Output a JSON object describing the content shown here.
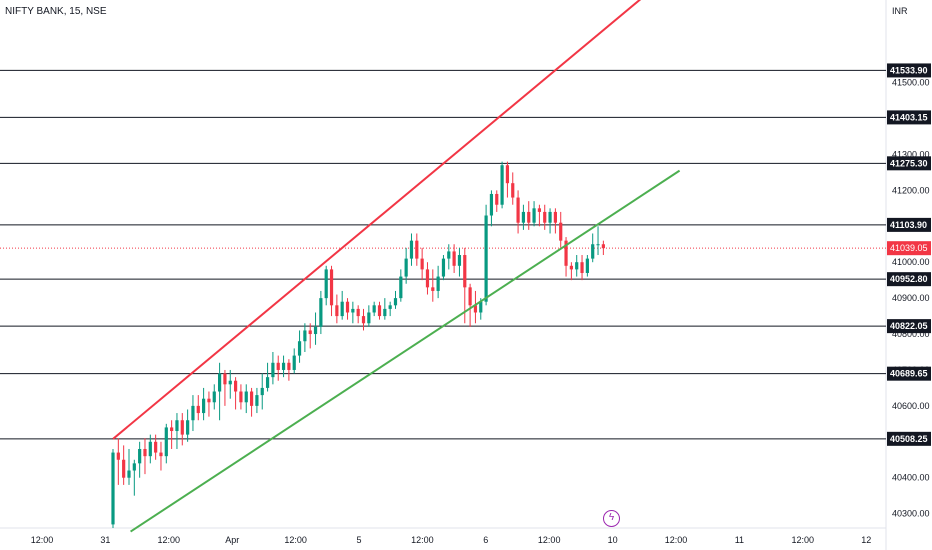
{
  "title": "NIFTY BANK, 15, NSE",
  "currency": "INR",
  "chart_data": {
    "type": "candlestick",
    "ylim": [
      40260,
      41730
    ],
    "y_ticks": [
      40300,
      40400,
      40500,
      40600,
      40700,
      40800,
      40900,
      41000,
      41100,
      41200,
      41300,
      41400,
      41500
    ],
    "y_tick_labels": [
      "40300.00",
      "40400.00",
      "40500.00",
      "40600.00",
      "40700.00",
      "40800.00",
      "40900.00",
      "41000.00",
      "41100.00",
      "41200.00",
      "41300.00",
      "41400.00",
      "41500.00"
    ],
    "x_tick_labels": [
      "12:00",
      "31",
      "12:00",
      "Apr",
      "12:00",
      "5",
      "12:00",
      "6",
      "12:00",
      "10",
      "12:00",
      "11",
      "12:00",
      "12"
    ],
    "levels": [
      41533.9,
      41403.15,
      41275.3,
      41103.9,
      40952.8,
      40822.05,
      40689.65,
      40508.25
    ],
    "level_labels": [
      "41533.90",
      "41403.15",
      "41275.30",
      "41103.90",
      "40952.80",
      "40822.05",
      "40689.65",
      "40508.25"
    ],
    "current_price": 41039.05,
    "current_price_label": "41039.05",
    "up_color": "#089981",
    "down_color": "#f23645",
    "upper_channel": {
      "color": "#f23645",
      "from": [
        0,
        40508
      ],
      "to": [
        99.6,
        41740
      ]
    },
    "lower_channel": {
      "color": "#4caf50",
      "from": [
        3.3,
        40250
      ],
      "to": [
        106.3,
        41255
      ]
    },
    "candles": [
      [
        40270,
        40470,
        40260,
        40480
      ],
      [
        40470,
        40450,
        40380,
        40510
      ],
      [
        40450,
        40400,
        40380,
        40490
      ],
      [
        40400,
        40420,
        40380,
        40480
      ],
      [
        40420,
        40440,
        40350,
        40450
      ],
      [
        40440,
        40480,
        40400,
        40500
      ],
      [
        40480,
        40460,
        40410,
        40510
      ],
      [
        40460,
        40500,
        40440,
        40520
      ],
      [
        40500,
        40470,
        40450,
        40520
      ],
      [
        40470,
        40460,
        40420,
        40500
      ],
      [
        40460,
        40540,
        40440,
        40550
      ],
      [
        40540,
        40530,
        40480,
        40560
      ],
      [
        40530,
        40560,
        40480,
        40580
      ],
      [
        40560,
        40520,
        40490,
        40580
      ],
      [
        40520,
        40560,
        40500,
        40590
      ],
      [
        40560,
        40600,
        40530,
        40630
      ],
      [
        40600,
        40580,
        40560,
        40630
      ],
      [
        40580,
        40620,
        40560,
        40650
      ],
      [
        40620,
        40610,
        40570,
        40640
      ],
      [
        40610,
        40640,
        40590,
        40660
      ],
      [
        40640,
        40690,
        40560,
        40720
      ],
      [
        40690,
        40660,
        40600,
        40700
      ],
      [
        40660,
        40670,
        40620,
        40700
      ],
      [
        40670,
        40640,
        40590,
        40680
      ],
      [
        40640,
        40610,
        40590,
        40660
      ],
      [
        40610,
        40640,
        40580,
        40660
      ],
      [
        40640,
        40600,
        40570,
        40650
      ],
      [
        40600,
        40630,
        40580,
        40650
      ],
      [
        40630,
        40650,
        40590,
        40690
      ],
      [
        40650,
        40680,
        40640,
        40720
      ],
      [
        40680,
        40720,
        40660,
        40750
      ],
      [
        40720,
        40700,
        40670,
        40740
      ],
      [
        40700,
        40720,
        40680,
        40740
      ],
      [
        40720,
        40700,
        40670,
        40730
      ],
      [
        40700,
        40740,
        40690,
        40760
      ],
      [
        40740,
        40780,
        40720,
        40810
      ],
      [
        40780,
        40810,
        40750,
        40830
      ],
      [
        40810,
        40800,
        40760,
        40830
      ],
      [
        40800,
        40820,
        40770,
        40860
      ],
      [
        40820,
        40900,
        40800,
        40920
      ],
      [
        40900,
        40980,
        40880,
        40990
      ],
      [
        40980,
        40880,
        40850,
        40990
      ],
      [
        40880,
        40850,
        40830,
        40910
      ],
      [
        40850,
        40890,
        40840,
        40920
      ],
      [
        40890,
        40860,
        40840,
        40900
      ],
      [
        40860,
        40870,
        40830,
        40890
      ],
      [
        40870,
        40850,
        40830,
        40880
      ],
      [
        40850,
        40830,
        40810,
        40870
      ],
      [
        40830,
        40860,
        40820,
        40880
      ],
      [
        40860,
        40880,
        40850,
        40890
      ],
      [
        40880,
        40850,
        40840,
        40890
      ],
      [
        40850,
        40870,
        40840,
        40900
      ],
      [
        40870,
        40880,
        40850,
        40890
      ],
      [
        40880,
        40900,
        40870,
        40920
      ],
      [
        40900,
        40960,
        40890,
        40980
      ],
      [
        40960,
        41010,
        40940,
        41040
      ],
      [
        41010,
        41060,
        40990,
        41080
      ],
      [
        41060,
        41010,
        40990,
        41080
      ],
      [
        41010,
        40980,
        40950,
        41040
      ],
      [
        40980,
        40930,
        40910,
        41000
      ],
      [
        40930,
        40920,
        40890,
        40980
      ],
      [
        40920,
        40960,
        40900,
        40990
      ],
      [
        40960,
        41010,
        40950,
        41020
      ],
      [
        41010,
        41030,
        40980,
        41050
      ],
      [
        41030,
        40990,
        40970,
        41050
      ],
      [
        40990,
        41020,
        40960,
        41040
      ],
      [
        41020,
        40930,
        40830,
        41040
      ],
      [
        40930,
        40880,
        40820,
        40940
      ],
      [
        40880,
        40860,
        40830,
        40920
      ],
      [
        40860,
        40890,
        40840,
        40900
      ],
      [
        40890,
        41130,
        40880,
        41160
      ],
      [
        41130,
        41190,
        41100,
        41200
      ],
      [
        41190,
        41160,
        41140,
        41200
      ],
      [
        41160,
        41270,
        41150,
        41280
      ],
      [
        41270,
        41220,
        41180,
        41280
      ],
      [
        41220,
        41180,
        41160,
        41250
      ],
      [
        41180,
        41110,
        41080,
        41200
      ],
      [
        41110,
        41140,
        41090,
        41160
      ],
      [
        41140,
        41110,
        41090,
        41170
      ],
      [
        41110,
        41150,
        41100,
        41170
      ],
      [
        41150,
        41140,
        41100,
        41160
      ],
      [
        41140,
        41110,
        41090,
        41160
      ],
      [
        41110,
        41140,
        41080,
        41150
      ],
      [
        41140,
        41110,
        41080,
        41150
      ],
      [
        41110,
        41060,
        41040,
        41140
      ],
      [
        41060,
        40990,
        40960,
        41070
      ],
      [
        40990,
        40980,
        40950,
        41000
      ],
      [
        40980,
        41000,
        40960,
        41020
      ],
      [
        41000,
        40970,
        40950,
        41020
      ],
      [
        40970,
        41010,
        40960,
        41020
      ],
      [
        41010,
        41050,
        41000,
        41080
      ],
      [
        41050,
        41050,
        41020,
        41100
      ],
      [
        41050,
        41039,
        41020,
        41060
      ]
    ]
  }
}
